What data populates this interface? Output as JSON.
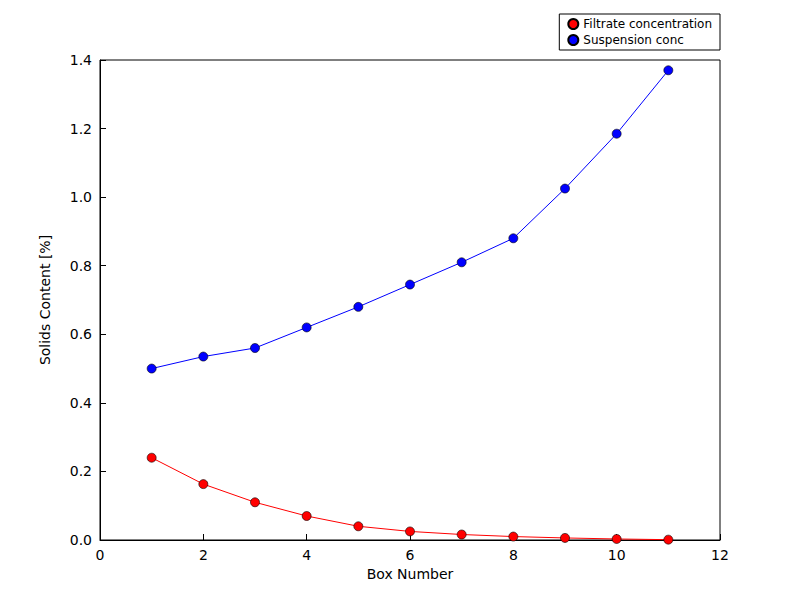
{
  "chart_data": {
    "type": "line",
    "x_label": "Box Number",
    "y_label": "Solids Content [%]",
    "x": [
      1,
      2,
      3,
      4,
      5,
      6,
      7,
      8,
      9,
      10,
      11
    ],
    "series": [
      {
        "name": "Filtrate concentration",
        "color": "#ff0000",
        "marker": "o",
        "line_style": "solid",
        "values": [
          0.24,
          0.163,
          0.11,
          0.07,
          0.04,
          0.025,
          0.016,
          0.01,
          0.006,
          0.003,
          0.001
        ]
      },
      {
        "name": "Suspension conc",
        "color": "#0000ff",
        "marker": "o",
        "line_style": "solid",
        "values": [
          0.5,
          0.535,
          0.56,
          0.62,
          0.68,
          0.745,
          0.81,
          0.88,
          1.025,
          1.185,
          1.37
        ]
      }
    ],
    "xlim": [
      0,
      12
    ],
    "xticks": [
      0,
      2,
      4,
      6,
      8,
      10,
      12
    ],
    "ylim": [
      0,
      1.4
    ],
    "yticks": [
      {
        "value": 0,
        "label": "0.0"
      },
      0.2,
      0.4,
      0.6,
      0.8,
      {
        "value": 1,
        "label": "1.0"
      },
      1.2,
      1.4
    ],
    "grid": false,
    "legend": "upper right"
  }
}
